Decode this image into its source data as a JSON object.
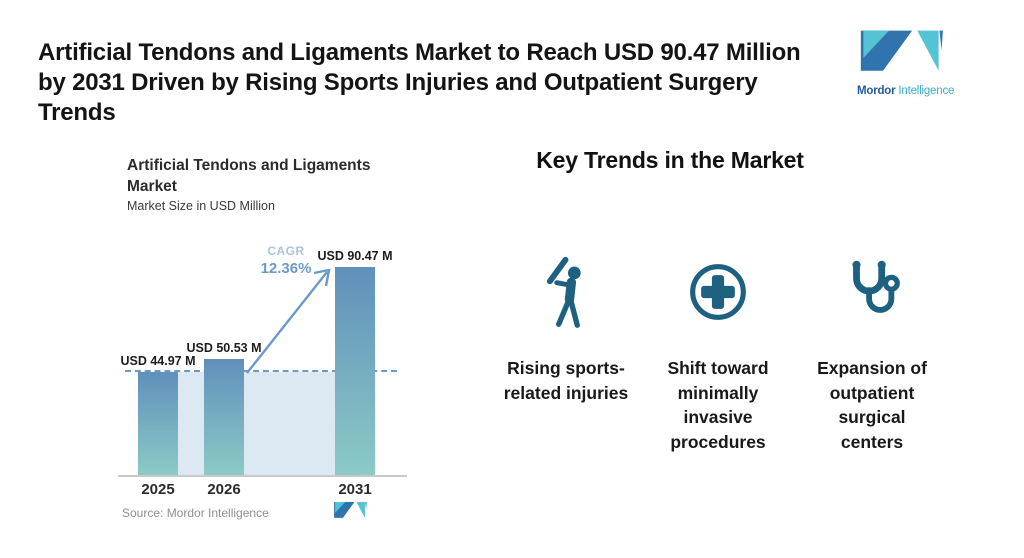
{
  "header": {
    "title": "Artificial Tendons and Ligaments Market to Reach USD 90.47 Million\nby 2031 Driven by Rising Sports Injuries and Outpatient Surgery\nTrends",
    "brand": {
      "name_bold": "Mordor",
      "name_light": "Intelligence"
    }
  },
  "chart": {
    "title": "Artificial Tendons and Ligaments\nMarket",
    "subtitle": "Market Size in USD Million",
    "cagr_label": "CAGR",
    "cagr_value": "12.36%",
    "source": "Source: Mordor Intelligence"
  },
  "chart_data": {
    "type": "bar",
    "title": "Artificial Tendons and Ligaments Market",
    "subtitle": "Market Size in USD Million",
    "categories": [
      "2025",
      "2026",
      "2031"
    ],
    "values": [
      44.97,
      50.53,
      90.47
    ],
    "value_labels": [
      "USD 44.97 M",
      "USD 50.53 M",
      "USD 90.47 M"
    ],
    "unit": "USD Million",
    "cagr_percent": 12.36,
    "reference_line_value": 44.97,
    "grid": false,
    "legend": false,
    "source": "Source: Mordor Intelligence"
  },
  "trends": {
    "heading": "Key Trends in the Market",
    "items": [
      {
        "icon": "baseball-batter-icon",
        "label": "Rising sports-\nrelated injuries"
      },
      {
        "icon": "medical-cross-icon",
        "label": "Shift toward\nminimally\ninvasive\nprocedures"
      },
      {
        "icon": "stethoscope-icon",
        "label": "Expansion of\noutpatient\nsurgical\ncenters"
      }
    ]
  },
  "colors": {
    "icon_teal": "#1d6080",
    "bar_gradient_top": "#6090bb",
    "bar_gradient_bottom": "#8ccac6",
    "band_fill": "#dde9f2",
    "arrow_blue": "#6b9aca",
    "cagr_label_blue": "#a9c3de",
    "logo_dark_blue": "#3173ad",
    "logo_teal": "#54c3d4",
    "brand_text_dark": "#1e5c9e",
    "brand_text_light": "#3aabcb",
    "source_gray": "#8f8f8f"
  }
}
